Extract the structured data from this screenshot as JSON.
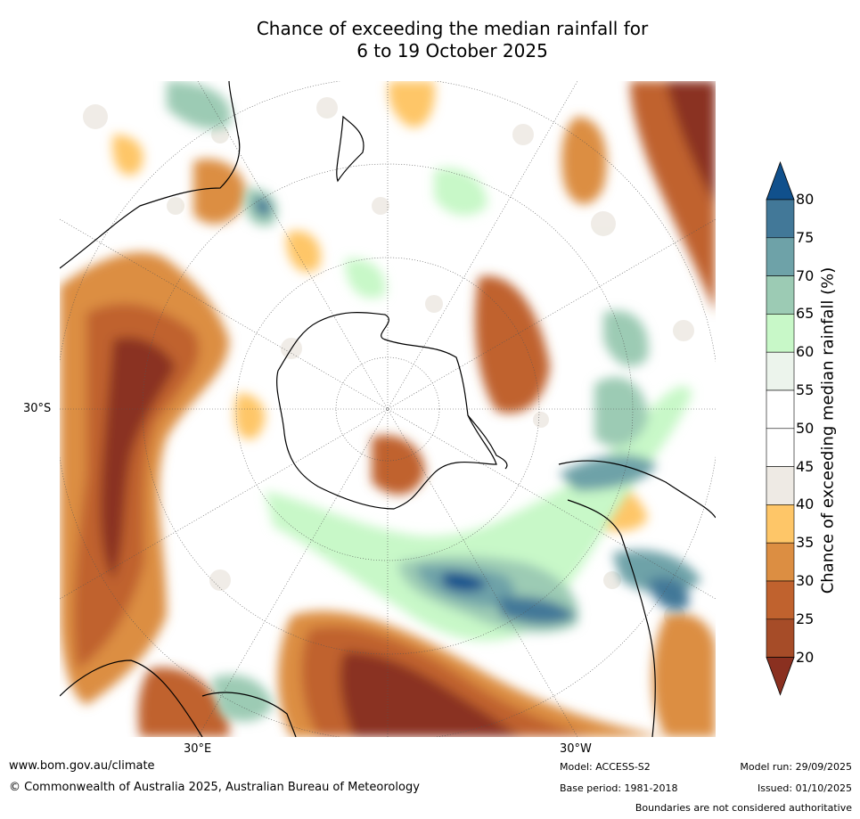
{
  "title": {
    "line1": "Chance of exceeding the median rainfall for",
    "line2": "6 to 19 October 2025"
  },
  "axis_labels": {
    "lat_30s": "30°S",
    "lon_30e": "30°E",
    "lon_30w": "30°W"
  },
  "colorbar": {
    "label": "Chance of exceeding median rainfall (%)",
    "ticks": [
      "80",
      "75",
      "70",
      "65",
      "60",
      "55",
      "50",
      "45",
      "40",
      "35",
      "30",
      "25",
      "20"
    ],
    "colors": [
      "#10508c",
      "#427898",
      "#6ea2a8",
      "#9ccbb4",
      "#c8f8c8",
      "#ecf4ec",
      "#ffffff",
      "#ffffff",
      "#eeeae4",
      "#fec668",
      "#dc8e42",
      "#c0622e",
      "#a64c28",
      "#8a3020"
    ]
  },
  "footer": {
    "website": "www.bom.gov.au/climate",
    "copyright": "© Commonwealth of Australia 2025, Australian Bureau of Meteorology",
    "model": "Model: ACCESS-S2",
    "base_period": "Base period: 1981-2018",
    "model_run": "Model run: 29/09/2025",
    "issued": "Issued: 01/10/2025",
    "disclaimer": "Boundaries are not considered authoritative"
  }
}
